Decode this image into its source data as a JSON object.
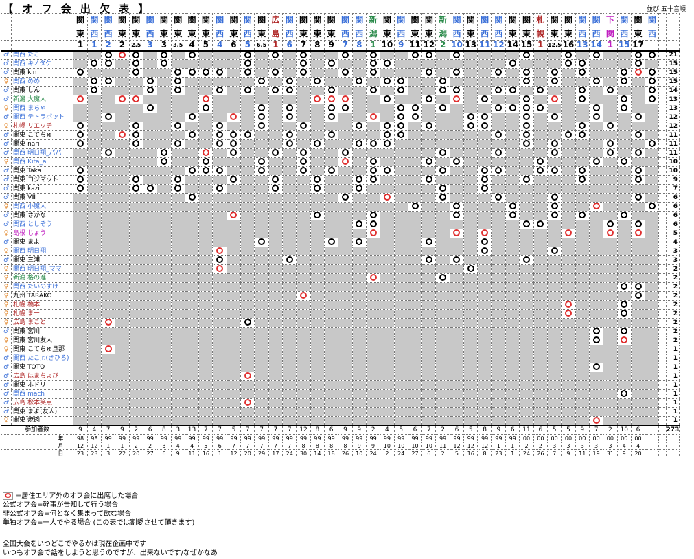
{
  "title": "【 オ フ 会 出 欠 表 】",
  "sort_note": "並び 五十音順",
  "colors": {
    "関東": "#000000",
    "関西": "#3a6fd8",
    "新潟": "#2a8a4a",
    "広島": "#b02828",
    "札幌": "#b02828",
    "下関": "#c020c0",
    "九州": "#000000",
    "島根": "#c020c0",
    "male_icon": "#3a6fd8",
    "female_icon": "#e08020",
    "other_mark": "#e03030"
  },
  "events": [
    {
      "a1": "関",
      "a2": "東",
      "n": "1",
      "area": "関東"
    },
    {
      "a1": "関",
      "a2": "西",
      "n": "1",
      "area": "関西"
    },
    {
      "a1": "関",
      "a2": "西",
      "n": "2",
      "area": "関西"
    },
    {
      "a1": "関",
      "a2": "東",
      "n": "2",
      "area": "関東"
    },
    {
      "a1": "関",
      "a2": "東",
      "n": "2.5",
      "area": "関東"
    },
    {
      "a1": "関",
      "a2": "西",
      "n": "3",
      "area": "関西"
    },
    {
      "a1": "関",
      "a2": "東",
      "n": "3",
      "area": "関東"
    },
    {
      "a1": "関",
      "a2": "東",
      "n": "3.5",
      "area": "関東"
    },
    {
      "a1": "関",
      "a2": "東",
      "n": "4",
      "area": "関東"
    },
    {
      "a1": "関",
      "a2": "東",
      "n": "5",
      "area": "関東"
    },
    {
      "a1": "関",
      "a2": "西",
      "n": "4",
      "area": "関西"
    },
    {
      "a1": "関",
      "a2": "東",
      "n": "6",
      "area": "関東"
    },
    {
      "a1": "関",
      "a2": "西",
      "n": "5",
      "area": "関西"
    },
    {
      "a1": "関",
      "a2": "東",
      "n": "6.5",
      "area": "関東"
    },
    {
      "a1": "広",
      "a2": "島",
      "n": "1",
      "area": "広島"
    },
    {
      "a1": "関",
      "a2": "西",
      "n": "6",
      "area": "関西"
    },
    {
      "a1": "関",
      "a2": "東",
      "n": "7",
      "area": "関東"
    },
    {
      "a1": "関",
      "a2": "東",
      "n": "8",
      "area": "関東"
    },
    {
      "a1": "関",
      "a2": "東",
      "n": "9",
      "area": "関東"
    },
    {
      "a1": "関",
      "a2": "西",
      "n": "7",
      "area": "関西"
    },
    {
      "a1": "関",
      "a2": "西",
      "n": "8",
      "area": "関西"
    },
    {
      "a1": "新",
      "a2": "潟",
      "n": "1",
      "area": "新潟"
    },
    {
      "a1": "関",
      "a2": "東",
      "n": "10",
      "area": "関東"
    },
    {
      "a1": "関",
      "a2": "西",
      "n": "9",
      "area": "関西"
    },
    {
      "a1": "関",
      "a2": "東",
      "n": "11",
      "area": "関東"
    },
    {
      "a1": "関",
      "a2": "東",
      "n": "12",
      "area": "関東"
    },
    {
      "a1": "新",
      "a2": "潟",
      "n": "2",
      "area": "新潟"
    },
    {
      "a1": "関",
      "a2": "西",
      "n": "10",
      "area": "関西"
    },
    {
      "a1": "関",
      "a2": "東",
      "n": "13",
      "area": "関東"
    },
    {
      "a1": "関",
      "a2": "西",
      "n": "11",
      "area": "関西"
    },
    {
      "a1": "関",
      "a2": "西",
      "n": "12",
      "area": "関西"
    },
    {
      "a1": "関",
      "a2": "東",
      "n": "14",
      "area": "関東"
    },
    {
      "a1": "関",
      "a2": "東",
      "n": "15",
      "area": "関東"
    },
    {
      "a1": "札",
      "a2": "幌",
      "n": "1",
      "area": "札幌"
    },
    {
      "a1": "関",
      "a2": "東",
      "n": "12.5",
      "area": "関東"
    },
    {
      "a1": "関",
      "a2": "東",
      "n": "16",
      "area": "関東"
    },
    {
      "a1": "関",
      "a2": "西",
      "n": "13",
      "area": "関西"
    },
    {
      "a1": "関",
      "a2": "西",
      "n": "14",
      "area": "関西"
    },
    {
      "a1": "下",
      "a2": "関",
      "n": "1",
      "area": "下関"
    },
    {
      "a1": "関",
      "a2": "西",
      "n": "15",
      "area": "関西"
    },
    {
      "a1": "関",
      "a2": "東",
      "n": "17",
      "area": "関東"
    },
    {
      "a1": "関",
      "a2": "西",
      "n": "",
      "area": "関西"
    }
  ],
  "members": [
    {
      "sex": "♂",
      "area": "関西",
      "name": "たこ",
      "total": "21",
      "marks": "  OoO O O   O O O  O O  OO O    O  O O  OOo  O O  O  "
    },
    {
      "sex": "♂",
      "area": "関西",
      "name": "キノタケ",
      "total": "15",
      "marks": ""
    },
    {
      "sex": "♂",
      "area": "関東",
      "name": "kin",
      "total": "15",
      "marks": ""
    },
    {
      "sex": "♀",
      "area": "関西",
      "name": "めめ",
      "total": "15",
      "marks": ""
    },
    {
      "sex": "♂",
      "area": "関東",
      "name": "しん",
      "total": "14",
      "marks": ""
    },
    {
      "sex": "♂",
      "area": "新潟",
      "name": "大魔人",
      "total": "13",
      "marks": ""
    },
    {
      "sex": "♀",
      "area": "関西",
      "name": "まちゃ",
      "total": "13",
      "marks": ""
    },
    {
      "sex": "♂",
      "area": "関西",
      "name": "テトラボット",
      "total": "12",
      "marks": ""
    },
    {
      "sex": "♀",
      "area": "札幌",
      "name": "リエッチ",
      "total": "12",
      "marks": ""
    },
    {
      "sex": "♂",
      "area": "関東",
      "name": "こてちゅ",
      "total": "11",
      "marks": ""
    },
    {
      "sex": "♂",
      "area": "関東",
      "name": "nari",
      "total": "11",
      "marks": ""
    },
    {
      "sex": "♂",
      "area": "関西",
      "name": "明日翔_パパ",
      "total": "11",
      "marks": ""
    },
    {
      "sex": "♀",
      "area": "関西",
      "name": "Kita_a",
      "total": "10",
      "marks": ""
    },
    {
      "sex": "♂",
      "area": "関東",
      "name": "Taka",
      "total": "10",
      "marks": ""
    },
    {
      "sex": "♂",
      "area": "関東",
      "name": "コジマット",
      "total": "9",
      "marks": ""
    },
    {
      "sex": "♂",
      "area": "関東",
      "name": "kazi",
      "total": "7",
      "marks": ""
    },
    {
      "sex": "♂",
      "area": "関東",
      "name": "Ⅷ",
      "total": "6",
      "marks": ""
    },
    {
      "sex": "♀",
      "area": "関西",
      "name": "小魔人",
      "total": "6",
      "marks": ""
    },
    {
      "sex": "♂",
      "area": "関東",
      "name": "さかな",
      "total": "6",
      "marks": ""
    },
    {
      "sex": "♂",
      "area": "関西",
      "name": "としぞう",
      "total": "6",
      "marks": ""
    },
    {
      "sex": "♀",
      "area": "島根",
      "name": "じょう",
      "total": "5",
      "marks": ""
    },
    {
      "sex": "♂",
      "area": "関東",
      "name": "まよ",
      "total": "4",
      "marks": ""
    },
    {
      "sex": "♀",
      "area": "関西",
      "name": "明日翔",
      "total": "3",
      "marks": ""
    },
    {
      "sex": "♂",
      "area": "関東",
      "name": "三浦",
      "total": "3",
      "marks": ""
    },
    {
      "sex": "♀",
      "area": "関西",
      "name": "明日翔_ママ",
      "total": "2",
      "marks": ""
    },
    {
      "sex": "♀",
      "area": "新潟",
      "name": "格の進",
      "total": "2",
      "marks": ""
    },
    {
      "sex": "♀",
      "area": "関西",
      "name": "たいのすけ",
      "total": "2",
      "marks": ""
    },
    {
      "sex": "♀",
      "area": "九州",
      "name": "TARAKO",
      "total": "2",
      "marks": ""
    },
    {
      "sex": "♀",
      "area": "札幌",
      "name": "橋本",
      "total": "2",
      "marks": ""
    },
    {
      "sex": "♀",
      "area": "札幌",
      "name": "まー",
      "total": "2",
      "marks": ""
    },
    {
      "sex": "♀",
      "area": "広島",
      "name": "まこと",
      "total": "2",
      "marks": ""
    },
    {
      "sex": "♂",
      "area": "関東",
      "name": "宮川",
      "total": "2",
      "marks": ""
    },
    {
      "sex": "♀",
      "area": "関東",
      "name": "宮川友人",
      "total": "2",
      "marks": ""
    },
    {
      "sex": "♀",
      "area": "関東",
      "name": "こてちゅ旦那",
      "total": "1",
      "marks": ""
    },
    {
      "sex": "♂",
      "area": "関西",
      "name": "たこJr.(きひろ)",
      "total": "1",
      "marks": ""
    },
    {
      "sex": "♂",
      "area": "関東",
      "name": "TOTO",
      "total": "1",
      "marks": ""
    },
    {
      "sex": "♂",
      "area": "広島",
      "name": "はまちょび",
      "total": "1",
      "marks": ""
    },
    {
      "sex": "♂",
      "area": "関東",
      "name": "ホドリ",
      "total": "1",
      "marks": ""
    },
    {
      "sex": "♂",
      "area": "関西",
      "name": "mach",
      "total": "1",
      "marks": ""
    },
    {
      "sex": "♂",
      "area": "広島",
      "name": "松本笑点",
      "total": "1",
      "marks": ""
    },
    {
      "sex": "♂",
      "area": "関東",
      "name": "まよ(友人)",
      "total": "1",
      "marks": ""
    },
    {
      "sex": "♀",
      "area": "関東",
      "name": "焼肉",
      "total": "1",
      "marks": ""
    }
  ],
  "summary": {
    "participants_label": "参加者数",
    "participants": [
      "9",
      "4",
      "7",
      "9",
      "2",
      "6",
      "8",
      "3",
      "13",
      "7",
      "7",
      "5",
      "7",
      "7",
      "7",
      "7",
      "12",
      "8",
      "6",
      "9",
      "9",
      "2",
      "4",
      "5",
      "6",
      "7",
      "2",
      "6",
      "5",
      "8",
      "9",
      "6",
      "11",
      "6",
      "5",
      "5",
      "9",
      "7",
      "2",
      "10",
      "6",
      ""
    ],
    "participants_total": "273",
    "year_label": "年",
    "years": [
      "98",
      "98",
      "99",
      "99",
      "99",
      "99",
      "99",
      "99",
      "99",
      "99",
      "99",
      "99",
      "99",
      "99",
      "99",
      "99",
      "99",
      "99",
      "99",
      "99",
      "99",
      "99",
      "99",
      "99",
      "99",
      "99",
      "99",
      "99",
      "99",
      "99",
      "99",
      "99",
      "00",
      "00",
      "00",
      "00",
      "00",
      "00",
      "00",
      "00",
      "00",
      ""
    ],
    "month_label": "月",
    "months": [
      "12",
      "12",
      "1",
      "1",
      "2",
      "2",
      "3",
      "4",
      "4",
      "5",
      "6",
      "7",
      "7",
      "7",
      "7",
      "7",
      "8",
      "8",
      "8",
      "8",
      "9",
      "9",
      "10",
      "10",
      "10",
      "10",
      "11",
      "12",
      "12",
      "12",
      "1",
      "1",
      "2",
      "2",
      "3",
      "3",
      "3",
      "3",
      "3",
      "4",
      "4",
      ""
    ],
    "day_label": "日",
    "days": [
      "23",
      "23",
      "3",
      "22",
      "20",
      "27",
      "6",
      "9",
      "11",
      "16",
      "1",
      "12",
      "20",
      "29",
      "17",
      "24",
      "30",
      "14",
      "18",
      "26",
      "10",
      "24",
      "2",
      "24",
      "27",
      "6",
      "2",
      "5",
      "16",
      "8",
      "23",
      "1",
      "24",
      "26",
      "7",
      "9",
      "11",
      "19",
      "31",
      "9",
      "20",
      ""
    ]
  },
  "legend": {
    "marker_desc": "=居住エリア外のオフ会に出席した場合",
    "lines": [
      "公式オフ会=幹事が告知して行う場合",
      "非公式オフ会=何となく集まって飲む場合",
      "単独オフ会=一人でやる場合 (この表では割愛させて頂きます)"
    ]
  },
  "notes": [
    "全国大会をいつどこでやるかは現在企画中です",
    "いつもオフ会で話をしようと思うのですが、出来ないです/なぜかなあ"
  ]
}
